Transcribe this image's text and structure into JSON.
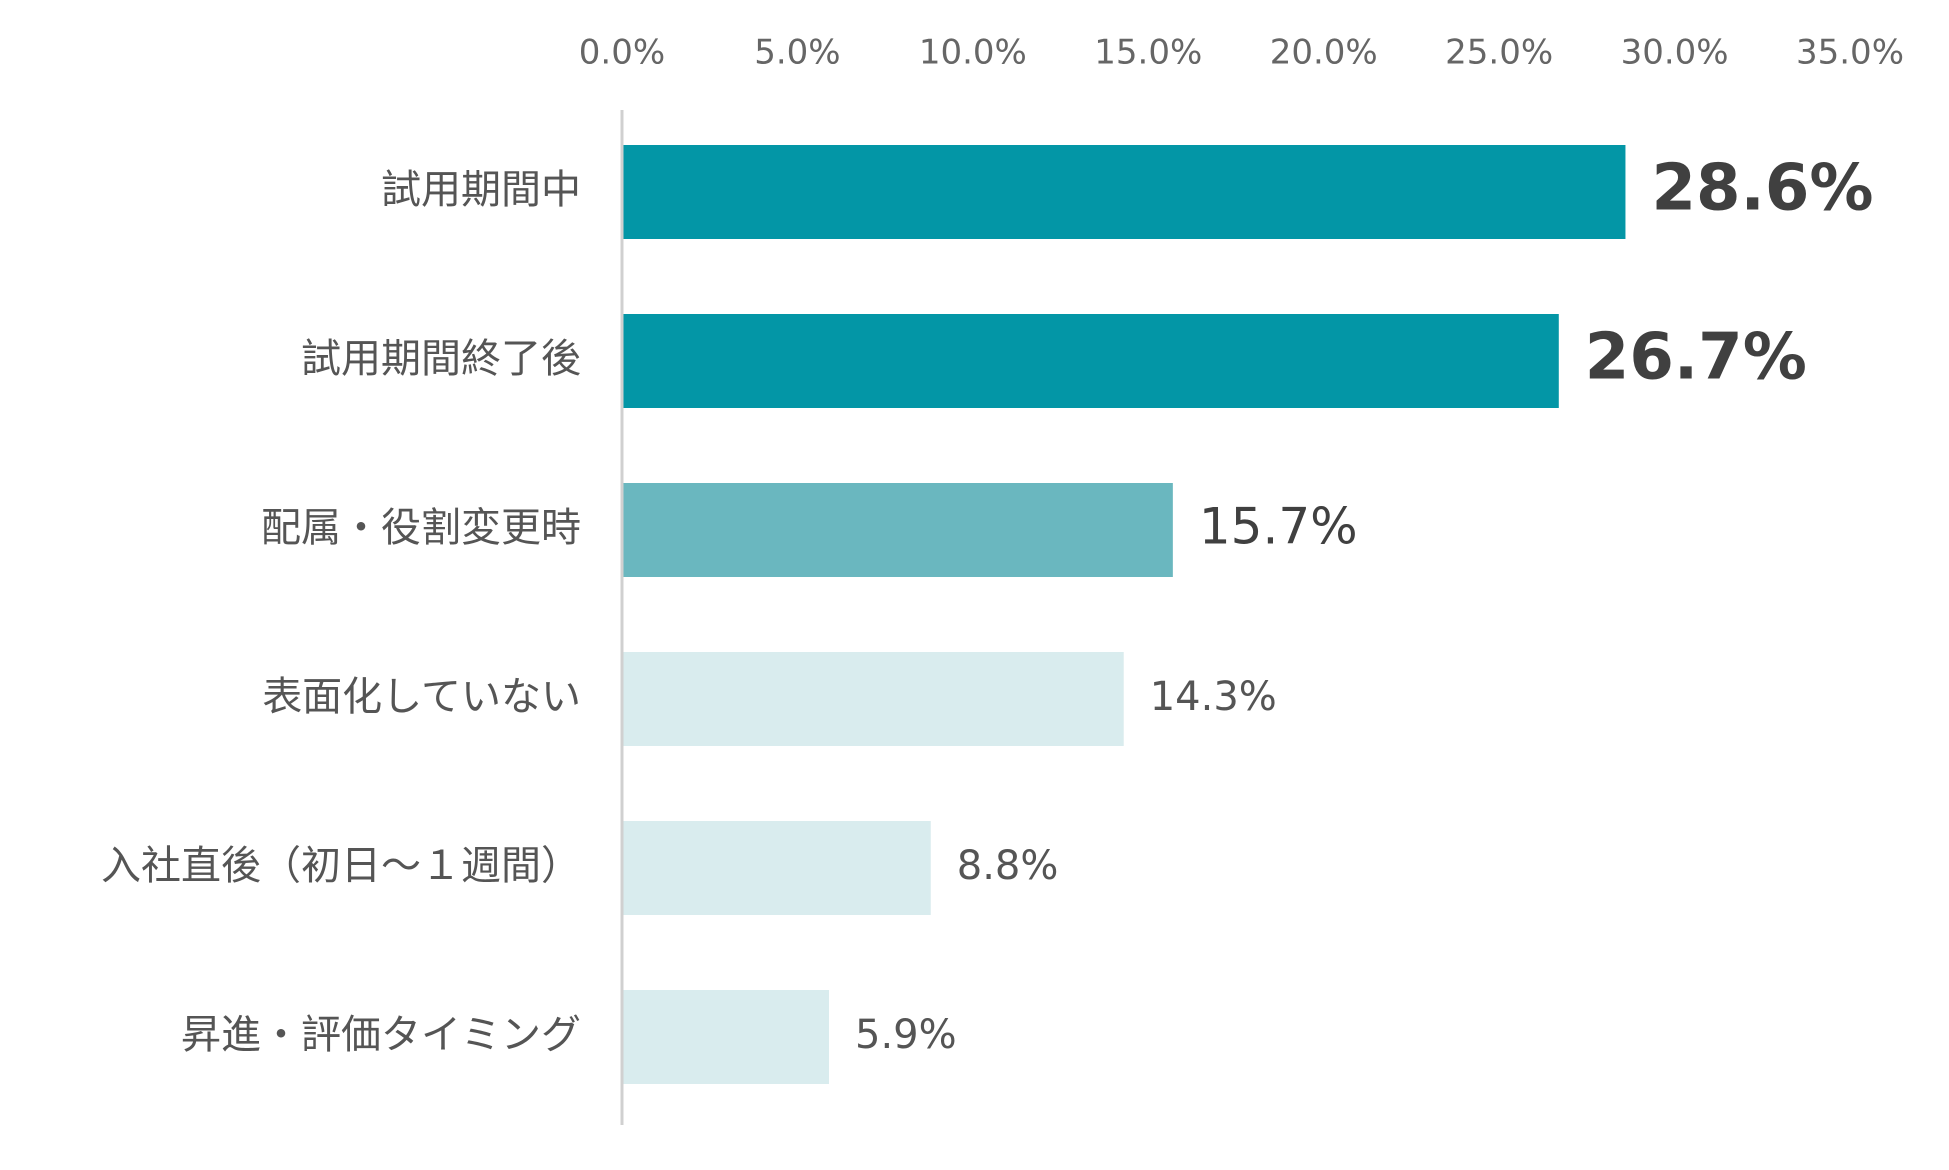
{
  "chart_data": {
    "type": "bar",
    "orientation": "horizontal",
    "categories": [
      "試用期間中",
      "試用期間終了後",
      "配属・役割変更時",
      "表面化していない",
      "入社直後（初日〜１週間）",
      "昇進・評価タイミング"
    ],
    "values": [
      28.6,
      26.7,
      15.7,
      14.3,
      8.8,
      5.9
    ],
    "value_labels": [
      "28.6%",
      "26.7%",
      "15.7%",
      "14.3%",
      "8.8%",
      "5.9%"
    ],
    "colors": [
      "#0396a6",
      "#0396a6",
      "#6ab7bf",
      "#d9ecee",
      "#d9ecee",
      "#d9ecee"
    ],
    "xlim": [
      0,
      35
    ],
    "xticks": [
      {
        "value": 0,
        "label": "0.0%"
      },
      {
        "value": 5,
        "label": "5.0%"
      },
      {
        "value": 10,
        "label": "10.0%"
      },
      {
        "value": 15,
        "label": "15.0%"
      },
      {
        "value": 20,
        "label": "20.0%"
      },
      {
        "value": 25,
        "label": "25.0%"
      },
      {
        "value": 30,
        "label": "30.0%"
      },
      {
        "value": 35,
        "label": "35.0%"
      }
    ],
    "tick_position": "top"
  }
}
